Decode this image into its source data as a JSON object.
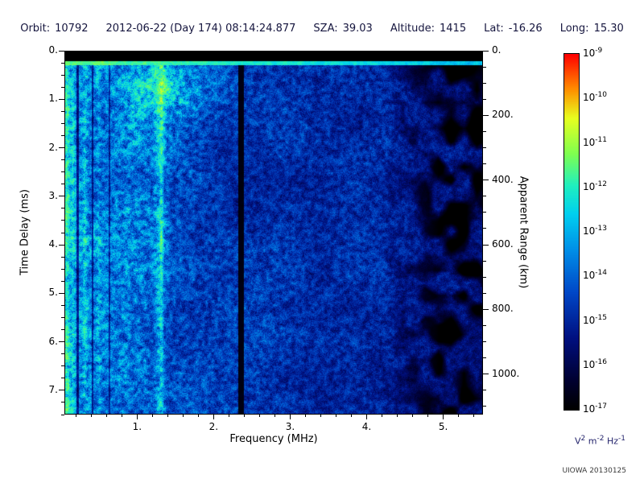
{
  "header": {
    "orbit_label": "Orbit:",
    "orbit": "10792",
    "datetime": "2012-06-22 (Day 174) 08:14:24.877",
    "sza_label": "SZA:",
    "sza": "39.03",
    "altitude_label": "Altitude:",
    "altitude": "1415",
    "lat_label": "Lat:",
    "lat": "-16.26",
    "long_label": "Long:",
    "long": "15.30"
  },
  "footer": {
    "credit": "UIOWA 20130125"
  },
  "colors": {
    "header_text": "#15153e",
    "tick_text": "#000000",
    "unit_text": "#23236b",
    "credit_text": "#3a3a3a"
  },
  "chart_data": {
    "type": "heatmap",
    "description": "Radar sounder ionogram: log-scaled received spectral density vs frequency (MHz) and time delay (ms); mostly blue noise field with bright cyan vertical bands below 1.5 MHz, a bright band at 1.3 MHz, a black dropout stripe at 2.36 MHz, a black band at 0-0.22 ms with a bright horizontal line beneath it, and an attenuated blotchy black/blue region above 4.3 MHz",
    "x_axis": {
      "label": "Frequency (MHz)",
      "min": 0.05,
      "max": 5.52,
      "major_ticks": [
        {
          "value": 1,
          "label": "1."
        },
        {
          "value": 2,
          "label": "2."
        },
        {
          "value": 3,
          "label": "3."
        },
        {
          "value": 4,
          "label": "4."
        },
        {
          "value": 5,
          "label": "5."
        }
      ],
      "minor_tick_step": 0.2
    },
    "y_axis": {
      "label": "Time Delay (ms)",
      "min": 0,
      "max": 7.5,
      "direction": "down",
      "major_ticks": [
        {
          "value": 0,
          "label": "0."
        },
        {
          "value": 1,
          "label": "1."
        },
        {
          "value": 2,
          "label": "2."
        },
        {
          "value": 3,
          "label": "3."
        },
        {
          "value": 4,
          "label": "4."
        },
        {
          "value": 5,
          "label": "5."
        },
        {
          "value": 6,
          "label": "6."
        },
        {
          "value": 7,
          "label": "7."
        }
      ],
      "minor_tick_step": 0.25
    },
    "y2_axis": {
      "label": "Apparent Range (km)",
      "km_per_ms": 150,
      "major_ticks": [
        {
          "value": 0,
          "label": "0."
        },
        {
          "value": 200,
          "label": "200."
        },
        {
          "value": 400,
          "label": "400."
        },
        {
          "value": 600,
          "label": "600."
        },
        {
          "value": 800,
          "label": "800."
        },
        {
          "value": 1000,
          "label": "1000."
        }
      ],
      "minor_tick_step": 50
    },
    "colorbar": {
      "scale": "log10",
      "tick_exponents": [
        -9,
        -10,
        -11,
        -12,
        -13,
        -14,
        -15,
        -16,
        -17
      ],
      "max_value": "1e-9",
      "min_value": "1e-17",
      "unit_parts": [
        {
          "base": "V",
          "exp": "2"
        },
        {
          "base": "m",
          "exp": "-2"
        },
        {
          "base": "Hz",
          "exp": "-1"
        }
      ],
      "stops": [
        [
          0.0,
          "#000000"
        ],
        [
          0.08,
          "#000030"
        ],
        [
          0.2,
          "#001080"
        ],
        [
          0.33,
          "#0048c8"
        ],
        [
          0.45,
          "#0090e8"
        ],
        [
          0.55,
          "#00d0f0"
        ],
        [
          0.63,
          "#20f0c0"
        ],
        [
          0.72,
          "#80ff50"
        ],
        [
          0.82,
          "#e8ff20"
        ],
        [
          0.9,
          "#ff9000"
        ],
        [
          1.0,
          "#ff0000"
        ]
      ]
    },
    "noise_seed": 1379,
    "background": {
      "floor": 0.235,
      "amp": 0.27,
      "f_scale": 1.25
    },
    "features": {
      "blackout_band": {
        "t_start_ms": 0.0,
        "t_end_ms": 0.22
      },
      "surface_line": {
        "t_start_ms": 0.22,
        "t_end_ms": 0.3,
        "intensity": 0.62
      },
      "bright_stripes_mhz": [
        {
          "f": 0.08,
          "w": 0.03,
          "g": 0.18
        },
        {
          "f": 0.16,
          "w": 0.015,
          "g": 0.1
        },
        {
          "f": 0.32,
          "w": 0.02,
          "g": 0.1
        },
        {
          "f": 0.5,
          "w": 0.02,
          "g": 0.06
        },
        {
          "f": 1.05,
          "w": 0.25,
          "g": 0.035
        },
        {
          "f": 1.3,
          "w": 0.045,
          "g": 0.15
        },
        {
          "f": 1.32,
          "w": 0.015,
          "g": 0.1
        }
      ],
      "dark_stripes_mhz": [
        {
          "f": 0.225,
          "w": 0.015,
          "k": 0.45
        },
        {
          "f": 0.42,
          "w": 0.012,
          "k": 0.55
        },
        {
          "f": 0.64,
          "w": 0.012,
          "k": 0.6
        },
        {
          "f": 2.36,
          "w": 0.038,
          "k": 0.1
        }
      ],
      "bright_blobs": [
        {
          "f": 1.35,
          "t": 0.9,
          "df": 0.28,
          "dt": 0.38,
          "g": 0.2
        },
        {
          "f": 1.5,
          "t": 0.55,
          "df": 0.5,
          "dt": 0.25,
          "g": 0.08
        }
      ],
      "attenuated_region": {
        "f_start_mhz": 4.25,
        "ramp_mhz": 0.7,
        "blotch_threshold": 0.32,
        "dim": 0.2
      }
    }
  }
}
